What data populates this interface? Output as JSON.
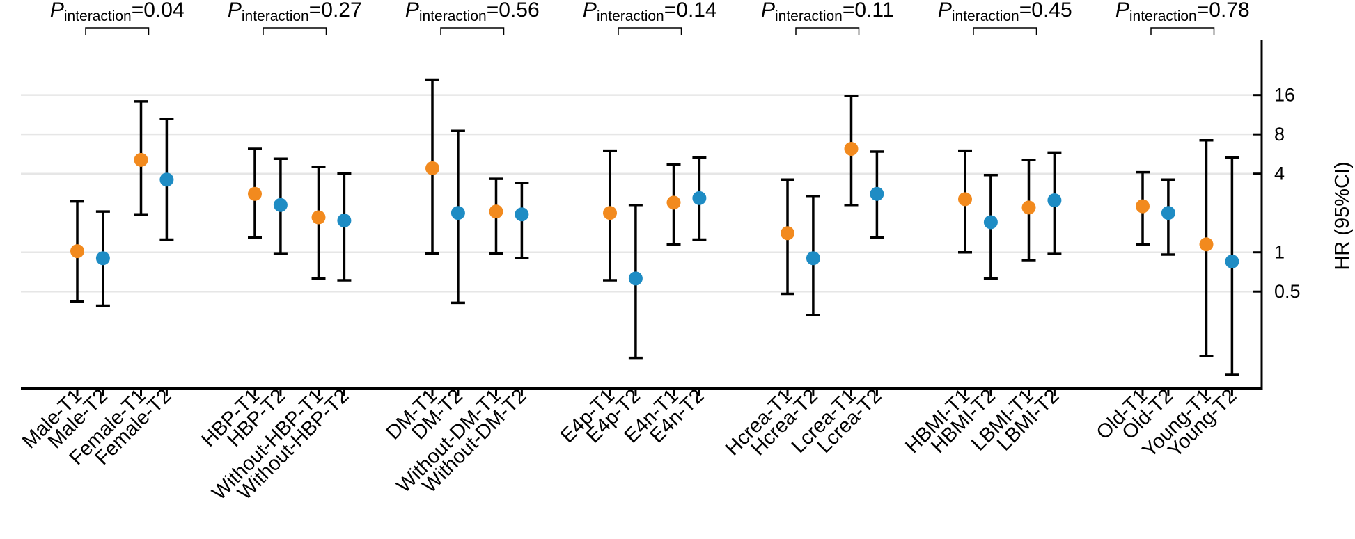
{
  "chart_data": {
    "type": "scatter",
    "subtype": "forest-plot-error-bars",
    "title": "",
    "ylabel": "HR (95%CI)",
    "xlabel": "",
    "y_scale": "log2",
    "ylim": [
      0.09,
      42
    ],
    "yticks": [
      0.5,
      1,
      4,
      8,
      16
    ],
    "ytick_labels": [
      "0.5",
      "1",
      "4",
      "8",
      "16"
    ],
    "grid": "horizontal",
    "colors": {
      "T1": "#f28a1e",
      "T2": "#1e8cc4",
      "whisker": "#000000",
      "grid": "#e6e6e6"
    },
    "interaction_label": {
      "symbol": "P",
      "subscript": "interaction"
    },
    "groups": [
      {
        "p_text": "=0.04",
        "categories": [
          "Male-T1",
          "Male-T2",
          "Female-T1",
          "Female-T2"
        ]
      },
      {
        "p_text": "=0.27",
        "categories": [
          "HBP-T1",
          "HBP-T2",
          "Without-HBP-T1",
          "Without-HBP-T2"
        ]
      },
      {
        "p_text": "=0.56",
        "categories": [
          "DM-T1",
          "DM-T2",
          "Without-DM-T1",
          "Without-DM-T2"
        ]
      },
      {
        "p_text": "=0.14",
        "categories": [
          "E4p-T1",
          "E4p-T2",
          "E4n-T1",
          "E4n-T2"
        ]
      },
      {
        "p_text": "=0.11",
        "categories": [
          "Hcrea-T1",
          "Hcrea-T2",
          "Lcrea-T1",
          "Lcrea-T2"
        ]
      },
      {
        "p_text": "=0.45",
        "categories": [
          "HBMI-T1",
          "HBMI-T2",
          "LBMI-T1",
          "LBMI-T2"
        ]
      },
      {
        "p_text": "=0.78",
        "categories": [
          "Old-T1",
          "Old-T2",
          "Young-T1",
          "Young-T2"
        ]
      }
    ],
    "points": [
      {
        "label": "Male-T1",
        "tertile": "T1",
        "hr": 1.02,
        "lo": 0.42,
        "hi": 2.45
      },
      {
        "label": "Male-T2",
        "tertile": "T2",
        "hr": 0.9,
        "lo": 0.39,
        "hi": 2.05
      },
      {
        "label": "Female-T1",
        "tertile": "T1",
        "hr": 5.1,
        "lo": 1.95,
        "hi": 14.3
      },
      {
        "label": "Female-T2",
        "tertile": "T2",
        "hr": 3.6,
        "lo": 1.25,
        "hi": 10.5
      },
      {
        "label": "HBP-T1",
        "tertile": "T1",
        "hr": 2.8,
        "lo": 1.3,
        "hi": 6.2
      },
      {
        "label": "HBP-T2",
        "tertile": "T2",
        "hr": 2.3,
        "lo": 0.97,
        "hi": 5.2
      },
      {
        "label": "Without-HBP-T1",
        "tertile": "T1",
        "hr": 1.85,
        "lo": 0.63,
        "hi": 4.5
      },
      {
        "label": "Without-HBP-T2",
        "tertile": "T2",
        "hr": 1.75,
        "lo": 0.61,
        "hi": 4.0
      },
      {
        "label": "DM-T1",
        "tertile": "T1",
        "hr": 4.4,
        "lo": 0.98,
        "hi": 21.0
      },
      {
        "label": "DM-T2",
        "tertile": "T2",
        "hr": 2.0,
        "lo": 0.41,
        "hi": 8.5
      },
      {
        "label": "Without-DM-T1",
        "tertile": "T1",
        "hr": 2.05,
        "lo": 0.98,
        "hi": 3.65
      },
      {
        "label": "Without-DM-T2",
        "tertile": "T2",
        "hr": 1.95,
        "lo": 0.9,
        "hi": 3.4
      },
      {
        "label": "E4p-T1",
        "tertile": "T1",
        "hr": 2.0,
        "lo": 0.61,
        "hi": 6.0
      },
      {
        "label": "E4p-T2",
        "tertile": "T2",
        "hr": 0.63,
        "lo": 0.155,
        "hi": 2.3
      },
      {
        "label": "E4n-T1",
        "tertile": "T1",
        "hr": 2.4,
        "lo": 1.15,
        "hi": 4.7
      },
      {
        "label": "E4n-T2",
        "tertile": "T2",
        "hr": 2.6,
        "lo": 1.25,
        "hi": 5.3
      },
      {
        "label": "Hcrea-T1",
        "tertile": "T1",
        "hr": 1.4,
        "lo": 0.48,
        "hi": 3.6
      },
      {
        "label": "Hcrea-T2",
        "tertile": "T2",
        "hr": 0.9,
        "lo": 0.33,
        "hi": 2.7
      },
      {
        "label": "Lcrea-T1",
        "tertile": "T1",
        "hr": 6.2,
        "lo": 2.3,
        "hi": 15.8
      },
      {
        "label": "Lcrea-T2",
        "tertile": "T2",
        "hr": 2.8,
        "lo": 1.3,
        "hi": 5.9
      },
      {
        "label": "HBMI-T1",
        "tertile": "T1",
        "hr": 2.55,
        "lo": 1.0,
        "hi": 6.0
      },
      {
        "label": "HBMI-T2",
        "tertile": "T2",
        "hr": 1.7,
        "lo": 0.63,
        "hi": 3.9
      },
      {
        "label": "LBMI-T1",
        "tertile": "T1",
        "hr": 2.2,
        "lo": 0.87,
        "hi": 5.1
      },
      {
        "label": "LBMI-T2",
        "tertile": "T2",
        "hr": 2.5,
        "lo": 0.97,
        "hi": 5.8
      },
      {
        "label": "Old-T1",
        "tertile": "T1",
        "hr": 2.25,
        "lo": 1.15,
        "hi": 4.1
      },
      {
        "label": "Old-T2",
        "tertile": "T2",
        "hr": 2.0,
        "lo": 0.96,
        "hi": 3.6
      },
      {
        "label": "Young-T1",
        "tertile": "T1",
        "hr": 1.15,
        "lo": 0.16,
        "hi": 7.2
      },
      {
        "label": "Young-T2",
        "tertile": "T2",
        "hr": 0.85,
        "lo": 0.115,
        "hi": 5.3
      }
    ]
  }
}
